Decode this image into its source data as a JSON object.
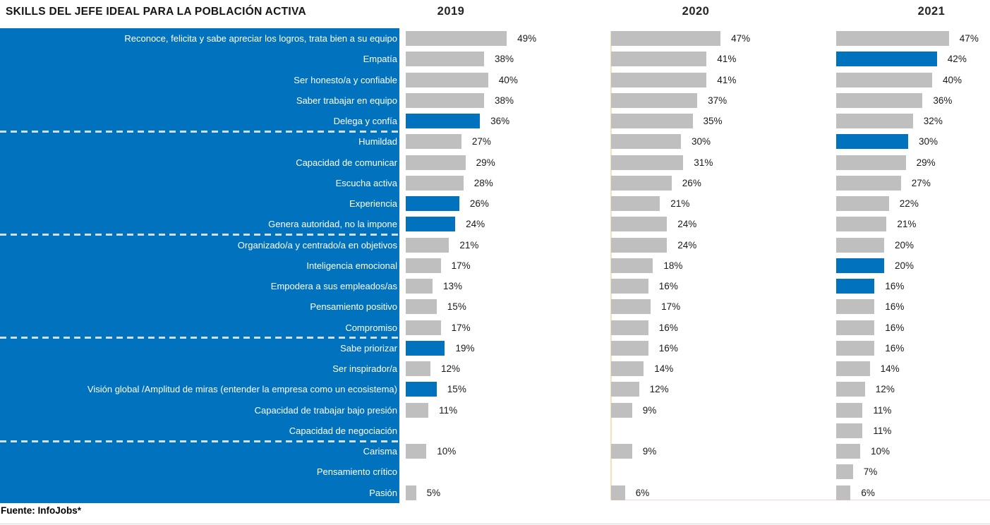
{
  "chart_data": {
    "type": "bar",
    "orientation": "horizontal",
    "title": "SKILLS DEL JEFE IDEAL PARA LA POBLACIÓN ACTIVA",
    "source": "Fuente: InfoJobs*",
    "value_suffix": "%",
    "xlim": [
      0,
      50
    ],
    "grid": false,
    "legend_position": "none",
    "categories": [
      "Reconoce, felicita y sabe apreciar los logros, trata bien a su equipo",
      "Empatía",
      "Ser honesto/a y confiable",
      "Saber trabajar en equipo",
      "Delega y confía",
      "Humildad",
      "Capacidad de comunicar",
      "Escucha activa",
      "Experiencia",
      "Genera autoridad, no la impone",
      "Organizado/a y centrado/a en objetivos",
      "Inteligencia emocional",
      "Empodera a sus empleados/as",
      "Pensamiento positivo",
      "Compromiso",
      "Sabe priorizar",
      "Ser inspirador/a",
      "Visión global /Amplitud de miras (entender la empresa como un ecosistema)",
      "Capacidad de trabajar bajo presión",
      "Capacidad de negociación",
      "Carisma",
      "Pensamiento crítico",
      "Pasión"
    ],
    "series": [
      {
        "name": "2019",
        "values": [
          49,
          38,
          40,
          38,
          36,
          27,
          29,
          28,
          26,
          24,
          21,
          17,
          13,
          15,
          17,
          19,
          12,
          15,
          11,
          null,
          10,
          null,
          5
        ],
        "highlight_indices": [
          4,
          8,
          9,
          15,
          17
        ]
      },
      {
        "name": "2020",
        "values": [
          47,
          41,
          41,
          37,
          35,
          30,
          31,
          26,
          21,
          24,
          24,
          18,
          16,
          17,
          16,
          16,
          14,
          12,
          9,
          null,
          9,
          null,
          6
        ],
        "highlight_indices": []
      },
      {
        "name": "2021",
        "values": [
          47,
          42,
          40,
          36,
          32,
          30,
          29,
          27,
          22,
          21,
          20,
          20,
          16,
          16,
          16,
          16,
          14,
          12,
          11,
          11,
          10,
          7,
          6
        ],
        "highlight_indices": [
          1,
          5,
          11,
          12
        ]
      }
    ],
    "group_separators_after_rows": [
      5,
      10,
      15,
      20
    ],
    "colors": {
      "bar_default": "#BFBFBF",
      "bar_highlight": "#0072BE",
      "label_panel_bg": "#0072BE",
      "label_text": "#FFFFFF",
      "value_text": "#1A1A1A"
    }
  }
}
